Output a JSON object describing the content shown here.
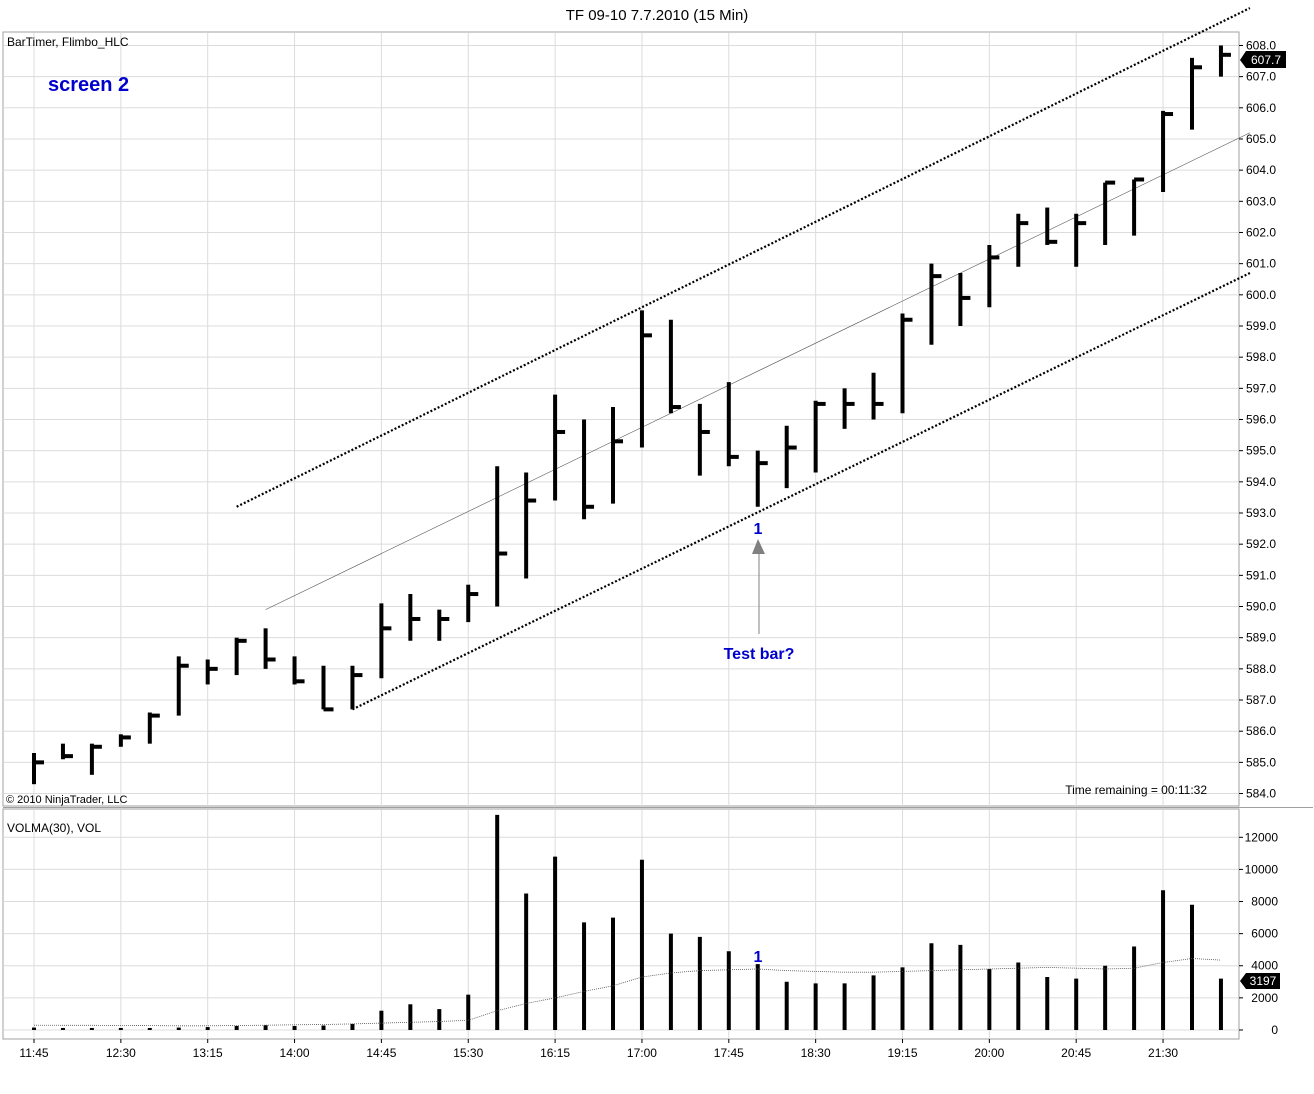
{
  "window": {
    "title": "TF 09-10  7.7.2010 (15 Min)"
  },
  "price_panel": {
    "indicator_label": "BarTimer, Flimbo_HLC",
    "annotation": "screen 2",
    "copyright": "© 2010 NinjaTrader, LLC",
    "time_remaining": "Time remaining = 00:11:32",
    "last_price_label": "607.7",
    "test_bar_number": "1",
    "test_bar_label": "Test bar?"
  },
  "volume_panel": {
    "indicator_label": "VOLMA(30), VOL",
    "last_volume_label": "3197",
    "test_bar_number": "1"
  },
  "colors": {
    "bars": "#000000",
    "annotation_blue": "#0000cc",
    "arrow": "#808080",
    "grid": "#dcdcdc",
    "border": "#a0a0a0"
  },
  "chart_data": [
    {
      "type": "ohlc",
      "title": "TF 09-10  7.7.2010 (15 Min)",
      "bar_style": "HLC",
      "x_ticks": [
        "11:45",
        "12:30",
        "13:15",
        "14:00",
        "14:45",
        "15:30",
        "16:15",
        "17:00",
        "17:45",
        "18:30",
        "19:15",
        "20:00",
        "20:45",
        "21:30"
      ],
      "y_ticks": [
        584.0,
        585.0,
        586.0,
        587.0,
        588.0,
        589.0,
        590.0,
        591.0,
        592.0,
        593.0,
        594.0,
        595.0,
        596.0,
        597.0,
        598.0,
        599.0,
        600.0,
        601.0,
        602.0,
        603.0,
        604.0,
        605.0,
        606.0,
        607.0,
        608.0
      ],
      "ylim": [
        583.6,
        608.4
      ],
      "grid": true,
      "bars": [
        {
          "time": "11:45",
          "high": 585.3,
          "low": 584.3,
          "close": 585.0
        },
        {
          "time": "12:00",
          "high": 585.6,
          "low": 585.1,
          "close": 585.2
        },
        {
          "time": "12:15",
          "high": 585.6,
          "low": 584.6,
          "close": 585.5
        },
        {
          "time": "12:30",
          "high": 585.9,
          "low": 585.5,
          "close": 585.8
        },
        {
          "time": "12:45",
          "high": 586.6,
          "low": 585.6,
          "close": 586.5
        },
        {
          "time": "13:00",
          "high": 588.4,
          "low": 586.5,
          "close": 588.1
        },
        {
          "time": "13:15",
          "high": 588.3,
          "low": 587.5,
          "close": 588.0
        },
        {
          "time": "13:30",
          "high": 589.0,
          "low": 587.8,
          "close": 588.9
        },
        {
          "time": "13:45",
          "high": 589.3,
          "low": 588.0,
          "close": 588.3
        },
        {
          "time": "14:00",
          "high": 588.4,
          "low": 587.5,
          "close": 587.6
        },
        {
          "time": "14:15",
          "high": 588.1,
          "low": 586.7,
          "close": 586.7
        },
        {
          "time": "14:30",
          "high": 588.1,
          "low": 586.7,
          "close": 587.8
        },
        {
          "time": "14:45",
          "high": 590.1,
          "low": 587.7,
          "close": 589.3
        },
        {
          "time": "15:00",
          "high": 590.4,
          "low": 588.9,
          "close": 589.6
        },
        {
          "time": "15:15",
          "high": 589.9,
          "low": 588.9,
          "close": 589.6
        },
        {
          "time": "15:30",
          "high": 590.7,
          "low": 589.5,
          "close": 590.4
        },
        {
          "time": "15:45",
          "high": 594.5,
          "low": 590.0,
          "close": 591.7
        },
        {
          "time": "16:00",
          "high": 594.3,
          "low": 590.9,
          "close": 593.4
        },
        {
          "time": "16:15",
          "high": 596.8,
          "low": 593.4,
          "close": 595.6
        },
        {
          "time": "16:30",
          "high": 596.0,
          "low": 592.8,
          "close": 593.2
        },
        {
          "time": "16:45",
          "high": 596.4,
          "low": 593.3,
          "close": 595.3
        },
        {
          "time": "17:00",
          "high": 599.5,
          "low": 595.1,
          "close": 598.7
        },
        {
          "time": "17:15",
          "high": 599.2,
          "low": 596.2,
          "close": 596.4
        },
        {
          "time": "17:30",
          "high": 596.5,
          "low": 594.2,
          "close": 595.6
        },
        {
          "time": "17:45",
          "high": 597.2,
          "low": 594.5,
          "close": 594.8
        },
        {
          "time": "18:00",
          "high": 595.0,
          "low": 593.2,
          "close": 594.6
        },
        {
          "time": "18:15",
          "high": 595.8,
          "low": 593.8,
          "close": 595.1
        },
        {
          "time": "18:30",
          "high": 596.6,
          "low": 594.3,
          "close": 596.5
        },
        {
          "time": "18:45",
          "high": 597.0,
          "low": 595.7,
          "close": 596.5
        },
        {
          "time": "19:00",
          "high": 597.5,
          "low": 596.0,
          "close": 596.5
        },
        {
          "time": "19:15",
          "high": 599.4,
          "low": 596.2,
          "close": 599.2
        },
        {
          "time": "19:30",
          "high": 601.0,
          "low": 598.4,
          "close": 600.6
        },
        {
          "time": "19:45",
          "high": 600.7,
          "low": 599.0,
          "close": 599.9
        },
        {
          "time": "20:00",
          "high": 601.6,
          "low": 599.6,
          "close": 601.2
        },
        {
          "time": "20:15",
          "high": 602.6,
          "low": 600.9,
          "close": 602.3
        },
        {
          "time": "20:30",
          "high": 602.8,
          "low": 601.6,
          "close": 601.7
        },
        {
          "time": "20:45",
          "high": 602.6,
          "low": 600.9,
          "close": 602.3
        },
        {
          "time": "21:00",
          "high": 603.6,
          "low": 601.6,
          "close": 603.6
        },
        {
          "time": "21:15",
          "high": 603.7,
          "low": 601.9,
          "close": 603.7
        },
        {
          "time": "21:30",
          "high": 605.9,
          "low": 603.3,
          "close": 605.8
        },
        {
          "time": "21:45",
          "high": 607.6,
          "low": 605.3,
          "close": 607.3
        },
        {
          "time": "22:00",
          "high": 608.0,
          "low": 607.0,
          "close": 607.7
        }
      ],
      "channel_lines": [
        {
          "style": "dotted",
          "from": {
            "time": "13:30",
            "price": 593.2
          },
          "to": {
            "time": "22:15",
            "price": 609.2
          }
        },
        {
          "style": "thin",
          "from": {
            "time": "13:45",
            "price": 589.9
          },
          "to": {
            "time": "22:15",
            "price": 605.2
          }
        },
        {
          "style": "dotted",
          "from": {
            "time": "14:30",
            "price": 586.7
          },
          "to": {
            "time": "22:15",
            "price": 600.7
          }
        }
      ],
      "annotations": [
        {
          "text": "1",
          "time": "18:00"
        },
        {
          "text": "Test bar?",
          "time": "18:00"
        }
      ]
    },
    {
      "type": "bar",
      "title": "VOLMA(30), VOL",
      "y_ticks": [
        0,
        2000,
        4000,
        6000,
        8000,
        10000,
        12000
      ],
      "ylim": [
        -500,
        13700
      ],
      "values": [
        150,
        80,
        70,
        60,
        120,
        150,
        180,
        250,
        300,
        250,
        280,
        380,
        1200,
        1600,
        1300,
        2200,
        13400,
        8500,
        10800,
        6700,
        7000,
        10600,
        6000,
        5800,
        4900,
        4100,
        3000,
        2900,
        2900,
        3400,
        3900,
        5400,
        5300,
        3800,
        4200,
        3300,
        3200,
        4000,
        5200,
        8700,
        7800,
        3197
      ],
      "moving_average": [
        300,
        290,
        290,
        280,
        270,
        260,
        260,
        280,
        300,
        320,
        340,
        380,
        430,
        480,
        530,
        600,
        1200,
        1650,
        2000,
        2400,
        2750,
        3300,
        3550,
        3700,
        3750,
        3800,
        3700,
        3650,
        3600,
        3600,
        3650,
        3700,
        3750,
        3800,
        3850,
        3900,
        3850,
        3800,
        3850,
        4200,
        4450,
        4350
      ]
    }
  ]
}
